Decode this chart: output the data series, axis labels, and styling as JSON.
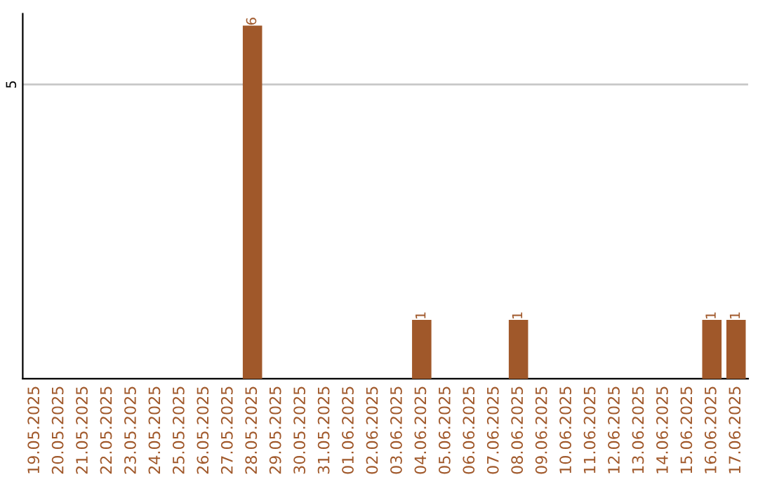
{
  "chart_data": {
    "type": "bar",
    "categories": [
      "19.05.2025",
      "20.05.2025",
      "21.05.2025",
      "22.05.2025",
      "23.05.2025",
      "24.05.2025",
      "25.05.2025",
      "26.05.2025",
      "27.05.2025",
      "28.05.2025",
      "29.05.2025",
      "30.05.2025",
      "31.05.2025",
      "01.06.2025",
      "02.06.2025",
      "03.06.2025",
      "04.06.2025",
      "05.06.2025",
      "06.06.2025",
      "07.06.2025",
      "08.06.2025",
      "09.06.2025",
      "10.06.2025",
      "11.06.2025",
      "12.06.2025",
      "13.06.2025",
      "14.06.2025",
      "15.06.2025",
      "16.06.2025",
      "17.06.2025"
    ],
    "values": [
      0,
      0,
      0,
      0,
      0,
      0,
      0,
      0,
      0,
      6,
      0,
      0,
      0,
      0,
      0,
      0,
      1,
      0,
      0,
      0,
      1,
      0,
      0,
      0,
      0,
      0,
      0,
      0,
      1,
      1
    ],
    "value_labels": [
      null,
      null,
      null,
      null,
      null,
      null,
      null,
      null,
      null,
      "6",
      null,
      null,
      null,
      null,
      null,
      null,
      "1",
      null,
      null,
      null,
      "1",
      null,
      null,
      null,
      null,
      null,
      null,
      null,
      "1",
      "1"
    ],
    "color": "#a0582a",
    "ylim": [
      0,
      6.2
    ],
    "yticks": [
      5
    ],
    "grid": "y"
  }
}
